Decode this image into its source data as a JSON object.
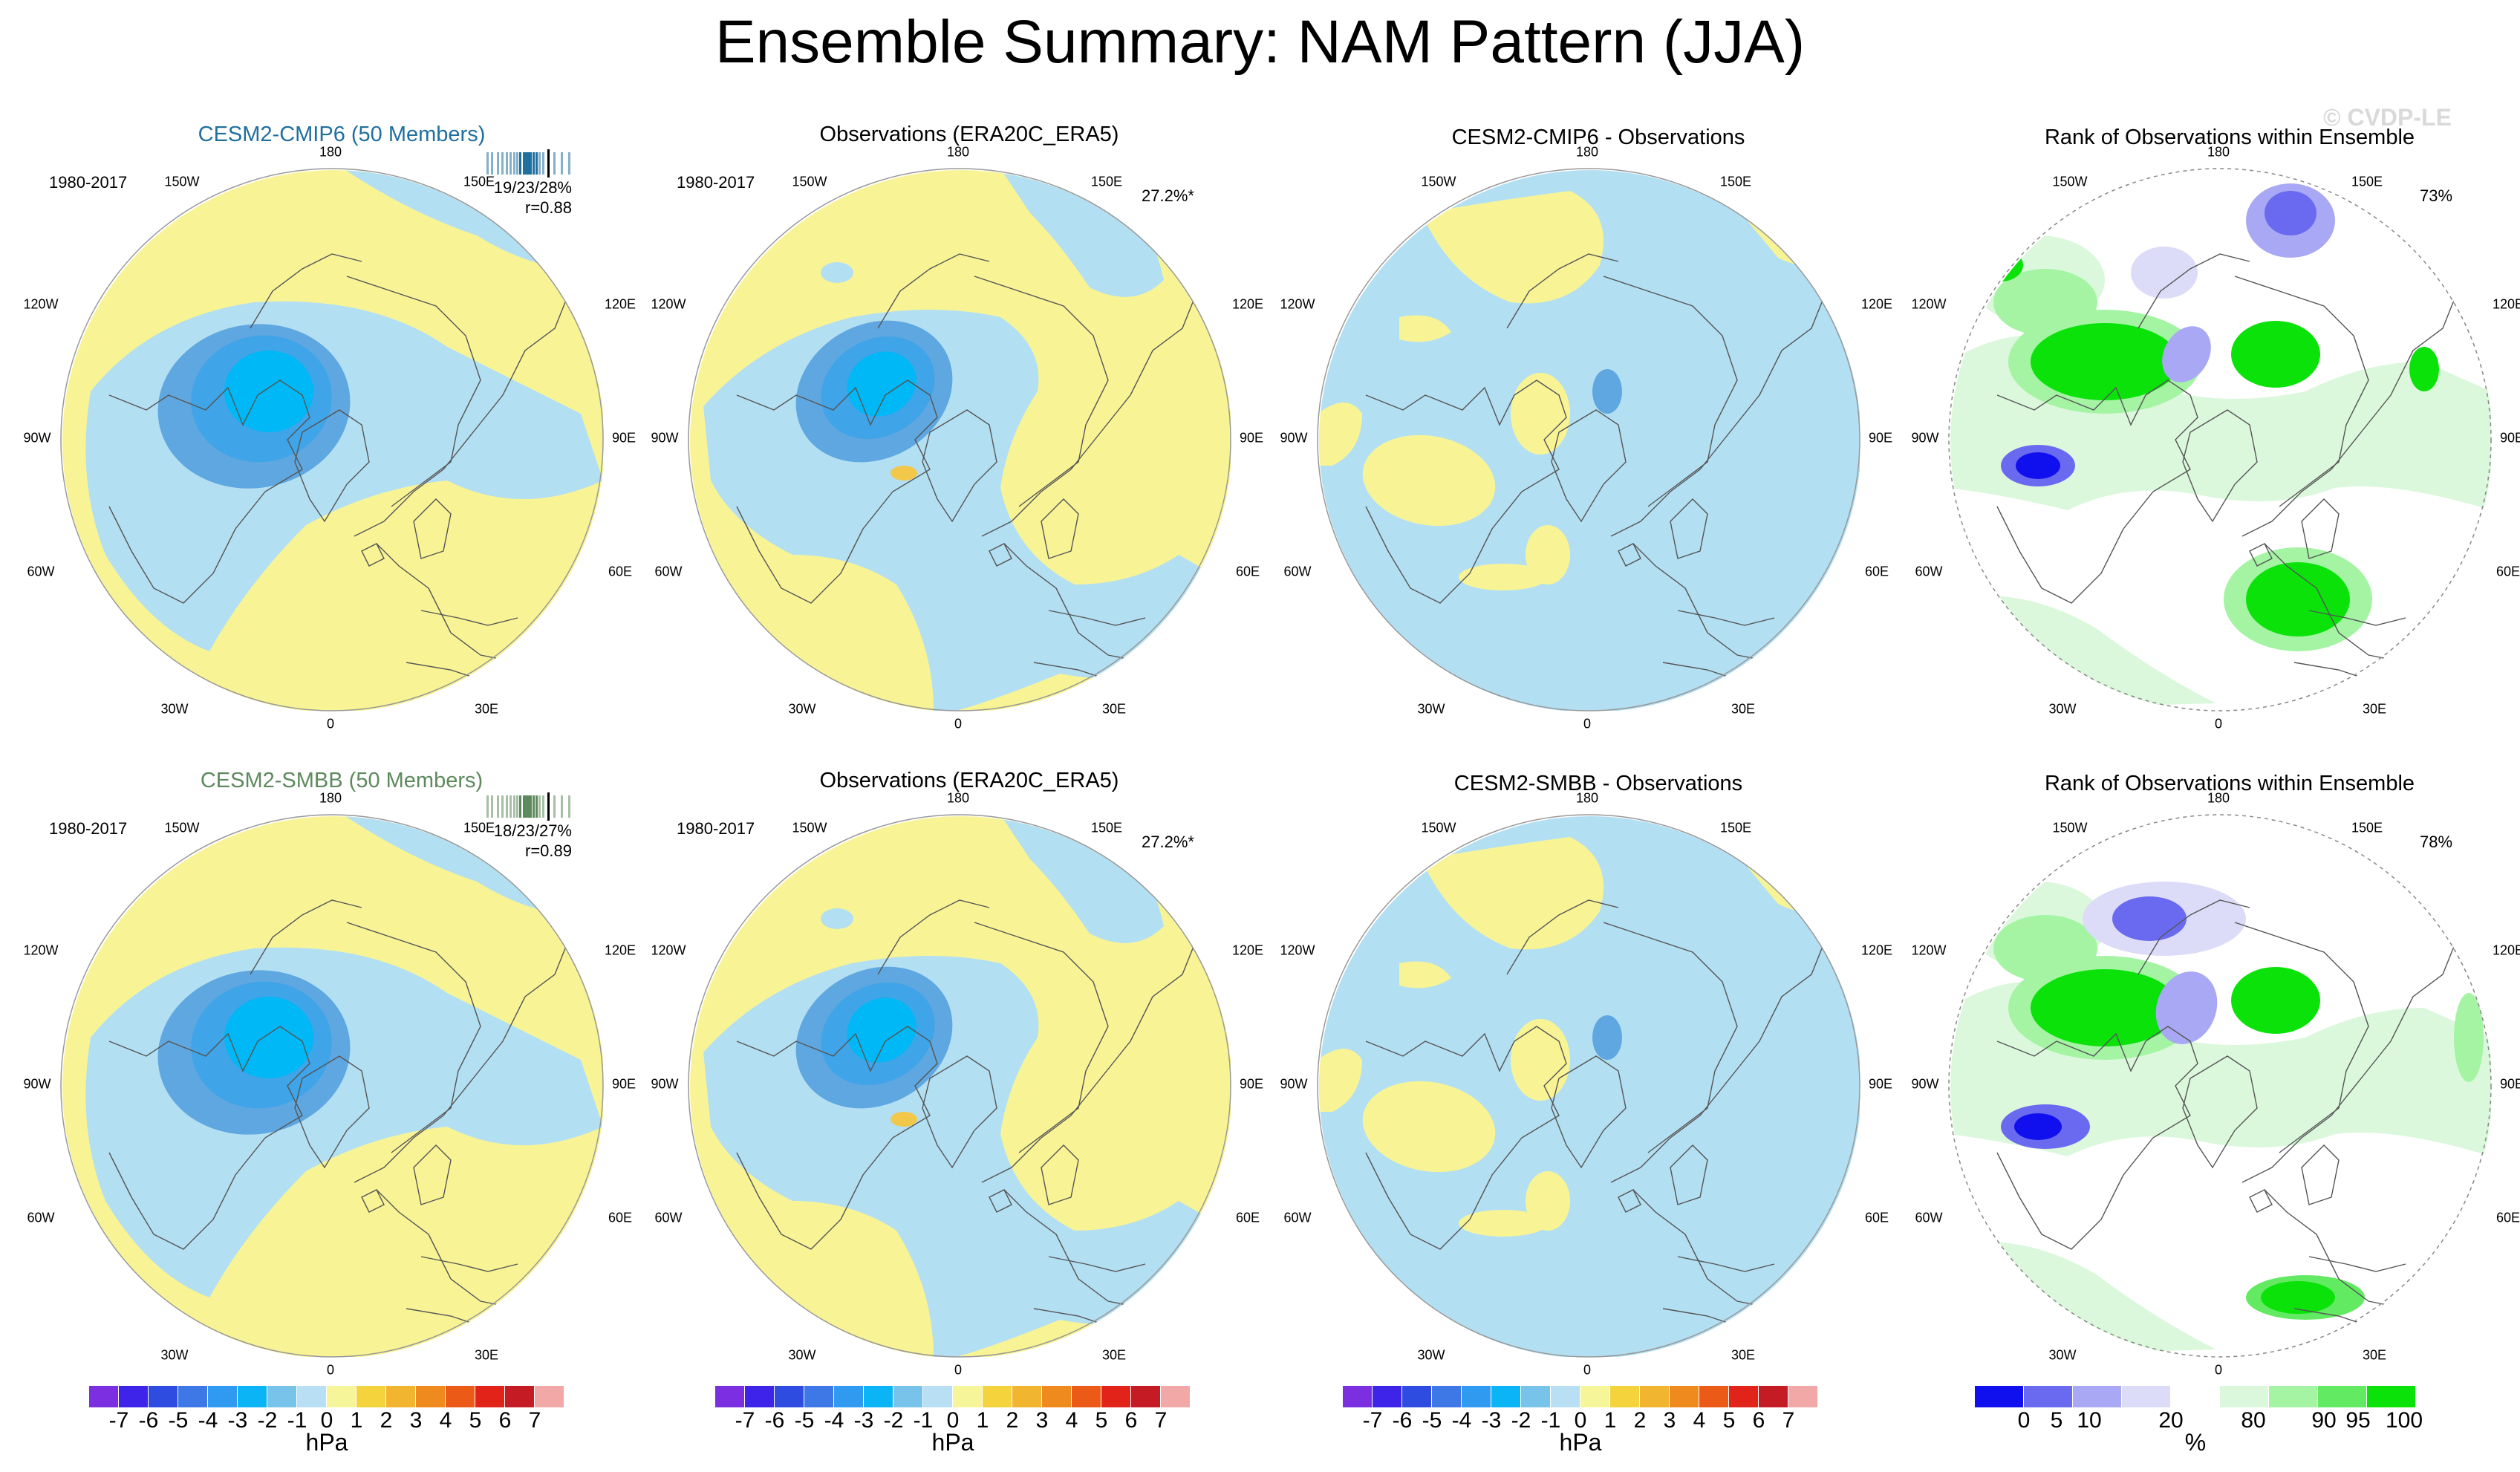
{
  "title": "Ensemble Summary: NAM Pattern (JJA)",
  "watermark": "© CVDP-LE",
  "labels": {
    "deg180": "180",
    "w150": "150W",
    "e150": "150E",
    "w120": "120W",
    "e120": "120E",
    "w90": "90W",
    "e90": "90E",
    "w60": "60W",
    "e60": "60E",
    "w30": "30W",
    "e30": "30E",
    "deg0": "0"
  },
  "colors": {
    "cmip6_title": "#1f6f9f",
    "smbb_title": "#5d8a5d",
    "neg3": "#00b8f5",
    "neg2": "#3fa4e8",
    "neg1": "#5fa7e0",
    "zero_neg": "#b3dff2",
    "zero_pos": "#f8f496",
    "pos1": "#f2c84b"
  },
  "panels": [
    {
      "title": "CESM2-CMIP6 (50 Members)",
      "period": "1980-2017",
      "stat1": "19/23/28%",
      "stat2": "r=0.88",
      "pct": ""
    },
    {
      "title": "Observations (ERA20C_ERA5)",
      "period": "1980-2017",
      "stat1": "",
      "stat2": "",
      "pct": "27.2%*"
    },
    {
      "title": "CESM2-CMIP6 - Observations",
      "period": "",
      "stat1": "",
      "stat2": "",
      "pct": ""
    },
    {
      "title": "Rank of Observations within Ensemble",
      "period": "",
      "stat1": "",
      "stat2": "",
      "pct": "73%"
    },
    {
      "title": "CESM2-SMBB (50 Members)",
      "period": "1980-2017",
      "stat1": "18/23/27%",
      "stat2": "r=0.89",
      "pct": ""
    },
    {
      "title": "Observations (ERA20C_ERA5)",
      "period": "1980-2017",
      "stat1": "",
      "stat2": "",
      "pct": "27.2%*"
    },
    {
      "title": "CESM2-SMBB - Observations",
      "period": "",
      "stat1": "",
      "stat2": "",
      "pct": ""
    },
    {
      "title": "Rank of Observations within Ensemble",
      "period": "",
      "stat1": "",
      "stat2": "",
      "pct": "78%"
    }
  ],
  "colorbar_hpa": {
    "unit": "hPa",
    "ticks": [
      "-7",
      "-6",
      "-5",
      "-4",
      "-3",
      "-2",
      "-1",
      "0",
      "1",
      "2",
      "3",
      "4",
      "5",
      "6",
      "7"
    ],
    "colors": [
      "#7b2fe0",
      "#3d24e8",
      "#2e4de0",
      "#3d78e6",
      "#2f9af0",
      "#0ab4f5",
      "#78c3ea",
      "#b8dff3",
      "#f7f59a",
      "#f5d33c",
      "#f2b530",
      "#ef8b1e",
      "#eb5a17",
      "#e2231a",
      "#c51b24",
      "#f3a8a8"
    ]
  },
  "colorbar_rank": {
    "unit": "%",
    "ticks": [
      "0",
      "5",
      "10",
      "20",
      "80",
      "90",
      "95",
      "100"
    ],
    "colors": [
      "#1010ee",
      "#6a6af0",
      "#a8a8f4",
      "#dcdcf8",
      "#ffffff",
      "#dcf8dc",
      "#a4f4a4",
      "#62ea62",
      "#0ae20a"
    ]
  }
}
